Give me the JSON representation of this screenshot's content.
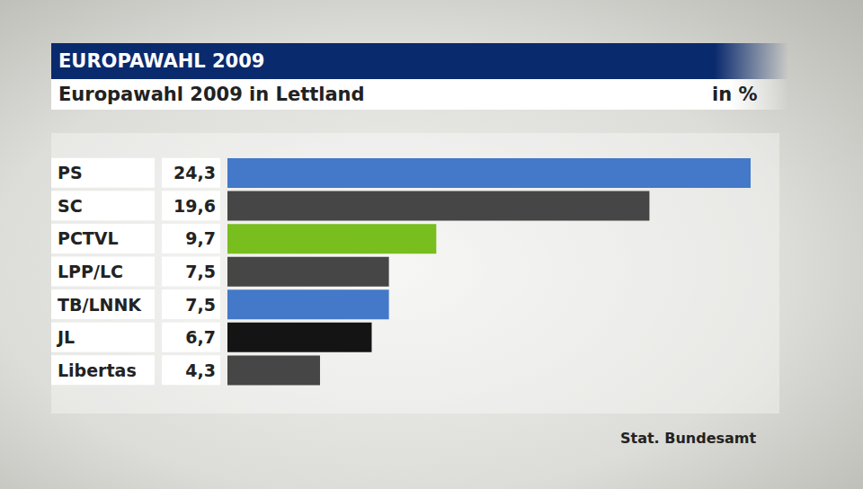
{
  "chart_data": {
    "type": "bar",
    "title": "EUROPAWAHL 2009",
    "subtitle": "Europawahl 2009 in Lettland",
    "xlabel": "in %",
    "annotations": [
      "Stat. Bundesamt"
    ],
    "orientation": "horizontal",
    "categories": [
      "PS",
      "SC",
      "PCTVL",
      "LPP/LC",
      "TB/LNNK",
      "JL",
      "Libertas"
    ],
    "values": [
      24.3,
      19.6,
      9.7,
      7.5,
      7.5,
      6.7,
      4.3
    ],
    "value_labels": [
      "24,3",
      "19,6",
      "9,7",
      "7,5",
      "7,5",
      "6,7",
      "4,3"
    ],
    "colors": [
      "#4478c8",
      "#464646",
      "#78be1e",
      "#464646",
      "#4478c8",
      "#141414",
      "#464646"
    ],
    "xlim": [
      0,
      24.3
    ],
    "xticks": [],
    "data_labels": true,
    "tick_labels": "y",
    "grid": false
  }
}
